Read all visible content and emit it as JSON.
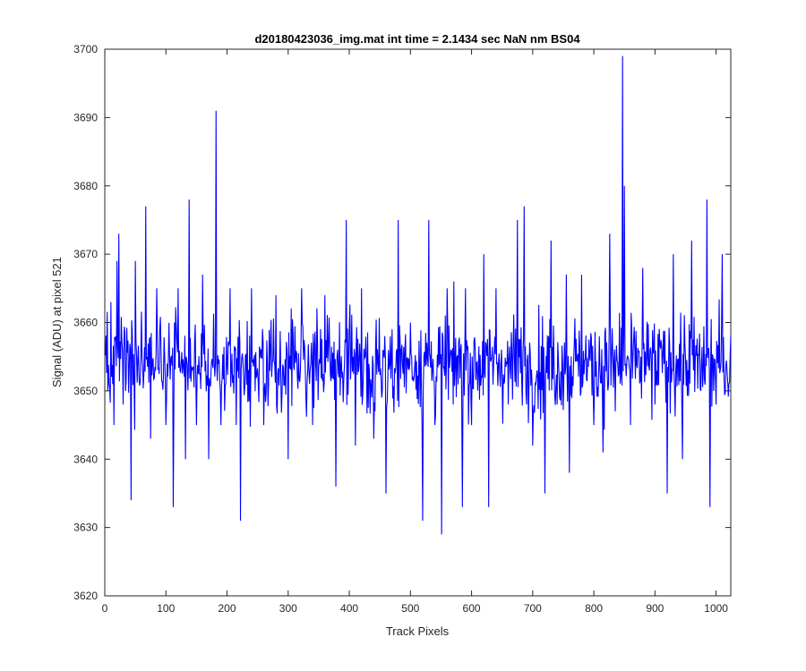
{
  "chart_data": {
    "type": "line",
    "title": "d20180423036_img.mat int time = 2.1434 sec  NaN nm BS04",
    "xlabel": "Track Pixels",
    "ylabel": "Signal (ADU) at pixel 521",
    "xlim": [
      0,
      1024
    ],
    "ylim": [
      3620,
      3700
    ],
    "xticks": [
      0,
      100,
      200,
      300,
      400,
      500,
      600,
      700,
      800,
      900,
      1000
    ],
    "yticks": [
      3620,
      3630,
      3640,
      3650,
      3660,
      3670,
      3680,
      3690,
      3700
    ],
    "grid": false,
    "line_color": "#0000ff",
    "series": [
      {
        "x_start": 1,
        "x_step": 1,
        "baseline": 3654,
        "noise_sd": 5.5,
        "values_sample": [
          [
            5,
            3650
          ],
          [
            10,
            3663
          ],
          [
            15,
            3645
          ],
          [
            20,
            3669
          ],
          [
            23,
            3673
          ],
          [
            30,
            3648
          ],
          [
            43,
            3634
          ],
          [
            50,
            3669
          ],
          [
            67,
            3677
          ],
          [
            75,
            3643
          ],
          [
            85,
            3665
          ],
          [
            100,
            3645
          ],
          [
            112,
            3633
          ],
          [
            120,
            3665
          ],
          [
            132,
            3640
          ],
          [
            138,
            3678
          ],
          [
            150,
            3645
          ],
          [
            160,
            3667
          ],
          [
            170,
            3640
          ],
          [
            182,
            3691
          ],
          [
            190,
            3645
          ],
          [
            205,
            3665
          ],
          [
            215,
            3645
          ],
          [
            222,
            3631
          ],
          [
            240,
            3665
          ],
          [
            260,
            3645
          ],
          [
            280,
            3664
          ],
          [
            300,
            3640
          ],
          [
            322,
            3665
          ],
          [
            340,
            3645
          ],
          [
            360,
            3664
          ],
          [
            378,
            3636
          ],
          [
            395,
            3675
          ],
          [
            410,
            3642
          ],
          [
            420,
            3665
          ],
          [
            440,
            3643
          ],
          [
            460,
            3635
          ],
          [
            480,
            3675
          ],
          [
            500,
            3660
          ],
          [
            520,
            3631
          ],
          [
            530,
            3675
          ],
          [
            540,
            3645
          ],
          [
            551,
            3629
          ],
          [
            560,
            3665
          ],
          [
            570,
            3648
          ],
          [
            585,
            3633
          ],
          [
            590,
            3665
          ],
          [
            600,
            3645
          ],
          [
            620,
            3670
          ],
          [
            628,
            3633
          ],
          [
            640,
            3665
          ],
          [
            660,
            3648
          ],
          [
            675,
            3675
          ],
          [
            686,
            3677
          ],
          [
            690,
            3648
          ],
          [
            700,
            3642
          ],
          [
            720,
            3635
          ],
          [
            730,
            3672
          ],
          [
            740,
            3648
          ],
          [
            755,
            3667
          ],
          [
            760,
            3638
          ],
          [
            780,
            3667
          ],
          [
            800,
            3645
          ],
          [
            815,
            3641
          ],
          [
            826,
            3673
          ],
          [
            835,
            3647
          ],
          [
            847,
            3699
          ],
          [
            850,
            3680
          ],
          [
            860,
            3645
          ],
          [
            880,
            3668
          ],
          [
            900,
            3648
          ],
          [
            920,
            3635
          ],
          [
            930,
            3670
          ],
          [
            945,
            3640
          ],
          [
            960,
            3672
          ],
          [
            975,
            3650
          ],
          [
            985,
            3678
          ],
          [
            990,
            3633
          ],
          [
            1000,
            3648
          ],
          [
            1010,
            3670
          ],
          [
            1024,
            3658
          ]
        ]
      }
    ]
  }
}
